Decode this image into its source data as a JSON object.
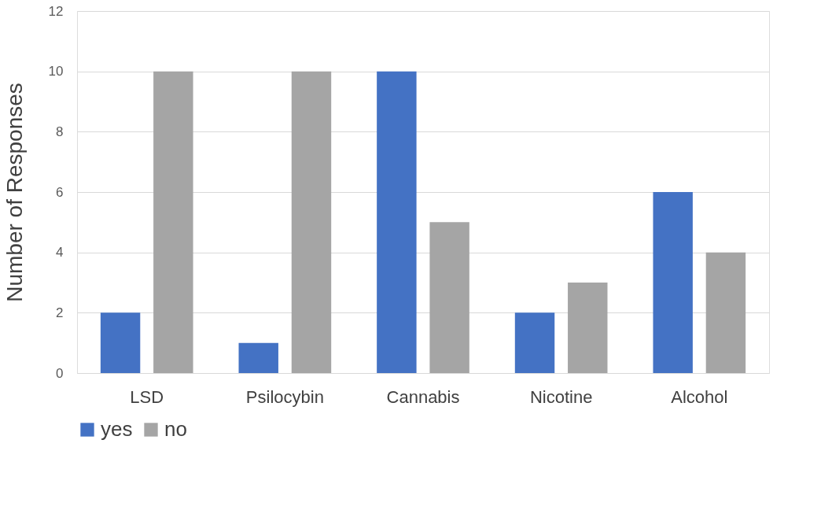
{
  "chart_data": {
    "type": "bar",
    "ylabel": "Number of Responses",
    "categories": [
      "LSD",
      "Psilocybin",
      "Cannabis",
      "Nicotine",
      "Alcohol"
    ],
    "series": [
      {
        "name": "yes",
        "color": "#4472c4",
        "values": [
          2,
          1,
          10,
          2,
          6
        ]
      },
      {
        "name": "no",
        "color": "#a5a5a5",
        "values": [
          10,
          10,
          5,
          3,
          4
        ]
      }
    ],
    "ylim": [
      0,
      12
    ],
    "yticks": [
      0,
      2,
      4,
      6,
      8,
      10,
      12
    ],
    "grid": "y",
    "legend": "bottom"
  }
}
